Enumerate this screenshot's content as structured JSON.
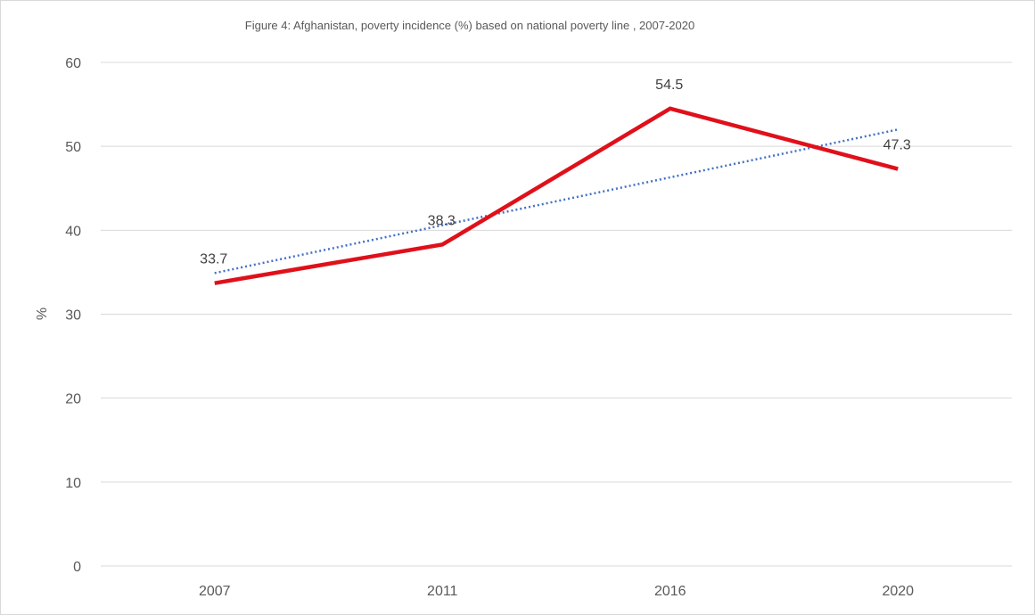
{
  "chart_data": {
    "type": "line",
    "title": "Figure 4: Afghanistan, poverty incidence (%) based on national poverty line , 2007-2020",
    "xlabel": "",
    "ylabel": "%",
    "categories": [
      "2007",
      "2011",
      "2016",
      "2020"
    ],
    "series": [
      {
        "values": [
          33.7,
          38.3,
          54.5,
          47.3
        ],
        "color": "#e0101a",
        "data_labels": [
          "33.7",
          "38.3",
          "54.5",
          "47.3"
        ]
      }
    ],
    "trendline": {
      "type": "linear",
      "style": "dotted",
      "color": "#4472c4"
    },
    "ylim": [
      0,
      60
    ],
    "yticks": [
      "0",
      "10",
      "20",
      "30",
      "40",
      "50",
      "60"
    ],
    "grid": "horizontal",
    "legend": "none"
  }
}
